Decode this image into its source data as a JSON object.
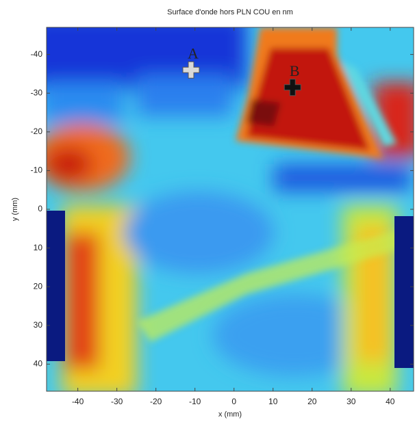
{
  "chart_data": {
    "type": "heatmap",
    "title": "Surface d'onde hors PLN COU en nm",
    "x_label": "x (mm)",
    "y_label": "y (mm)",
    "xlim": [
      -48,
      46
    ],
    "ylim": [
      -47,
      47
    ],
    "y_reversed": true,
    "xticks": [
      -40,
      -30,
      -20,
      -10,
      0,
      10,
      20,
      30,
      40
    ],
    "yticks": [
      -40,
      -30,
      -20,
      -10,
      0,
      10,
      20,
      30,
      40
    ],
    "markers": [
      {
        "label": "A",
        "x": -11,
        "y": -36,
        "color": "#d8d8d8"
      },
      {
        "label": "B",
        "x": 15,
        "y": -31.5,
        "color": "#111111"
      }
    ]
  }
}
